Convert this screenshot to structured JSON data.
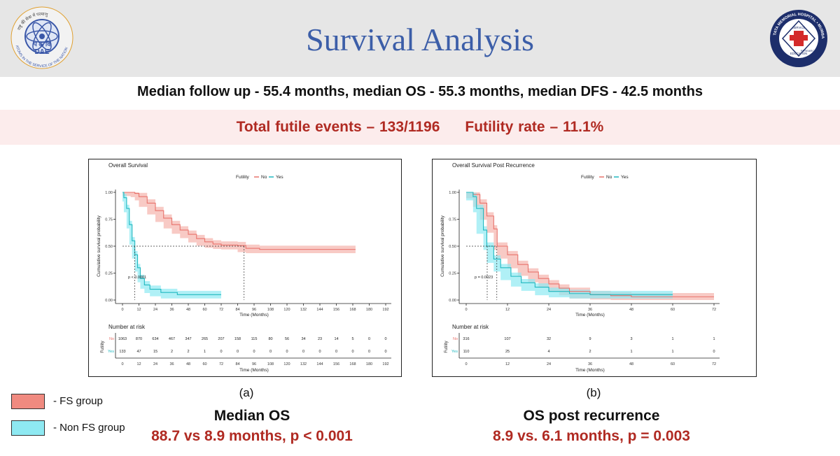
{
  "header": {
    "title": "Survival Analysis",
    "logo_left": {
      "top_text": "राष्ट्र की सेवा में परमाणु",
      "mid_text": "प ऊ वि",
      "abbr": "DAE",
      "ring_text": "ATOMS IN THE SERVICE OF THE NATION"
    },
    "logo_right": {
      "ring_text": "TATA MEMORIAL HOSPITAL • MUMBAI",
      "inner_text_1": "SERVICE",
      "inner_text_2": "RESEARCH",
      "inner_text_3": "EDUCATION"
    }
  },
  "subtitle": "Median follow up - 55.4 months, median OS - 55.3 months, median DFS - 42.5 months",
  "band": {
    "events": "Total futile events – 133/1196",
    "rate": "Futility rate – 11.1%"
  },
  "legend": {
    "items": [
      {
        "label": "- FS group",
        "color": "#f08a80"
      },
      {
        "label": "- Non FS group",
        "color": "#8ee9f2"
      }
    ]
  },
  "captions": {
    "a": "(a)",
    "b": "(b)"
  },
  "results": {
    "a": {
      "heading": "Median OS",
      "value": "88.7 vs 8.9 months, p < 0.001"
    },
    "b": {
      "heading": "OS post recurrence",
      "value": "8.9 vs. 6.1 months, p = 0.003"
    }
  },
  "colors": {
    "no": "#e8736c",
    "yes": "#20b8c0",
    "no_band": "#f5b3ad",
    "yes_band": "#8ee9f2",
    "accent": "#b02a22",
    "title": "#3c5ea8"
  },
  "chart_data": [
    {
      "type": "line",
      "title": "Overall Survival",
      "legend_title": "Futility",
      "legend_entries": [
        "No",
        "Yes"
      ],
      "xlabel": "Time (Months)",
      "ylabel": "Cumulative survival probability",
      "xlim": [
        0,
        192
      ],
      "ylim": [
        0,
        1
      ],
      "x_ticks": [
        0,
        12,
        24,
        36,
        48,
        60,
        72,
        84,
        96,
        108,
        120,
        132,
        144,
        156,
        168,
        180,
        192
      ],
      "y_ticks": [
        "0.00",
        "0.25",
        "0.50",
        "0.75",
        "1.00"
      ],
      "annotation": "p < 0.0001",
      "median_lines": [
        8.9,
        88.7
      ],
      "series": [
        {
          "name": "No",
          "points": [
            [
              0,
              1.0
            ],
            [
              6,
              1.0
            ],
            [
              9,
              0.99
            ],
            [
              12,
              0.96
            ],
            [
              18,
              0.9
            ],
            [
              24,
              0.83
            ],
            [
              30,
              0.76
            ],
            [
              36,
              0.7
            ],
            [
              42,
              0.65
            ],
            [
              48,
              0.61
            ],
            [
              54,
              0.57
            ],
            [
              60,
              0.54
            ],
            [
              66,
              0.52
            ],
            [
              72,
              0.51
            ],
            [
              84,
              0.505
            ],
            [
              90,
              0.48
            ],
            [
              100,
              0.47
            ],
            [
              120,
              0.47
            ],
            [
              140,
              0.47
            ],
            [
              160,
              0.47
            ],
            [
              170,
              0.47
            ]
          ]
        },
        {
          "name": "Yes",
          "points": [
            [
              0,
              1.0
            ],
            [
              1,
              0.95
            ],
            [
              3,
              0.85
            ],
            [
              5,
              0.7
            ],
            [
              7,
              0.55
            ],
            [
              9,
              0.42
            ],
            [
              11,
              0.3
            ],
            [
              13,
              0.2
            ],
            [
              16,
              0.14
            ],
            [
              20,
              0.1
            ],
            [
              28,
              0.07
            ],
            [
              40,
              0.05
            ],
            [
              60,
              0.05
            ],
            [
              72,
              0.05
            ]
          ]
        }
      ],
      "risk_table": {
        "title": "Number at risk",
        "row_label": "Futility",
        "rows": [
          {
            "name": "No",
            "counts": [
              1063,
              870,
              634,
              467,
              347,
              265,
              207,
              158,
              115,
              80,
              56,
              34,
              23,
              14,
              5,
              0,
              0
            ]
          },
          {
            "name": "Yes",
            "counts": [
              133,
              47,
              15,
              2,
              2,
              1,
              0,
              0,
              0,
              0,
              0,
              0,
              0,
              0,
              0,
              0,
              0
            ]
          }
        ],
        "x_ticks": [
          0,
          12,
          24,
          36,
          48,
          60,
          72,
          84,
          96,
          108,
          120,
          132,
          144,
          156,
          168,
          180,
          192
        ],
        "xlabel": "Time (Months)"
      }
    },
    {
      "type": "line",
      "title": "Overall Survival Post Recurrence",
      "legend_title": "Futility",
      "legend_entries": [
        "No",
        "Yes"
      ],
      "xlabel": "Time (Months)",
      "ylabel": "Cumulative survival probability",
      "xlim": [
        0,
        72
      ],
      "ylim": [
        0,
        1
      ],
      "x_ticks": [
        0,
        12,
        24,
        36,
        48,
        60,
        72
      ],
      "y_ticks": [
        "0.00",
        "0.25",
        "0.50",
        "0.75",
        "1.00"
      ],
      "annotation": "p = 0.0023",
      "median_lines": [
        6.1,
        8.9
      ],
      "series": [
        {
          "name": "No",
          "points": [
            [
              0,
              1.0
            ],
            [
              2,
              0.98
            ],
            [
              4,
              0.9
            ],
            [
              6,
              0.78
            ],
            [
              8,
              0.66
            ],
            [
              9,
              0.5
            ],
            [
              12,
              0.42
            ],
            [
              15,
              0.33
            ],
            [
              18,
              0.26
            ],
            [
              21,
              0.2
            ],
            [
              24,
              0.15
            ],
            [
              27,
              0.11
            ],
            [
              30,
              0.08
            ],
            [
              36,
              0.05
            ],
            [
              42,
              0.04
            ],
            [
              48,
              0.03
            ],
            [
              60,
              0.03
            ],
            [
              72,
              0.03
            ]
          ]
        },
        {
          "name": "Yes",
          "points": [
            [
              0,
              1.0
            ],
            [
              2,
              0.96
            ],
            [
              3,
              0.85
            ],
            [
              5,
              0.65
            ],
            [
              6,
              0.5
            ],
            [
              8,
              0.38
            ],
            [
              10,
              0.3
            ],
            [
              13,
              0.22
            ],
            [
              16,
              0.16
            ],
            [
              20,
              0.12
            ],
            [
              24,
              0.08
            ],
            [
              30,
              0.06
            ],
            [
              36,
              0.05
            ],
            [
              48,
              0.05
            ],
            [
              60,
              0.05
            ]
          ]
        }
      ],
      "risk_table": {
        "title": "Number at risk",
        "row_label": "Futility",
        "rows": [
          {
            "name": "No",
            "counts": [
              316,
              107,
              32,
              9,
              3,
              1,
              1
            ]
          },
          {
            "name": "Yes",
            "counts": [
              110,
              25,
              4,
              2,
              1,
              1,
              0
            ]
          }
        ],
        "x_ticks": [
          0,
          12,
          24,
          36,
          48,
          60,
          72
        ],
        "xlabel": "Time (Months)"
      }
    }
  ]
}
